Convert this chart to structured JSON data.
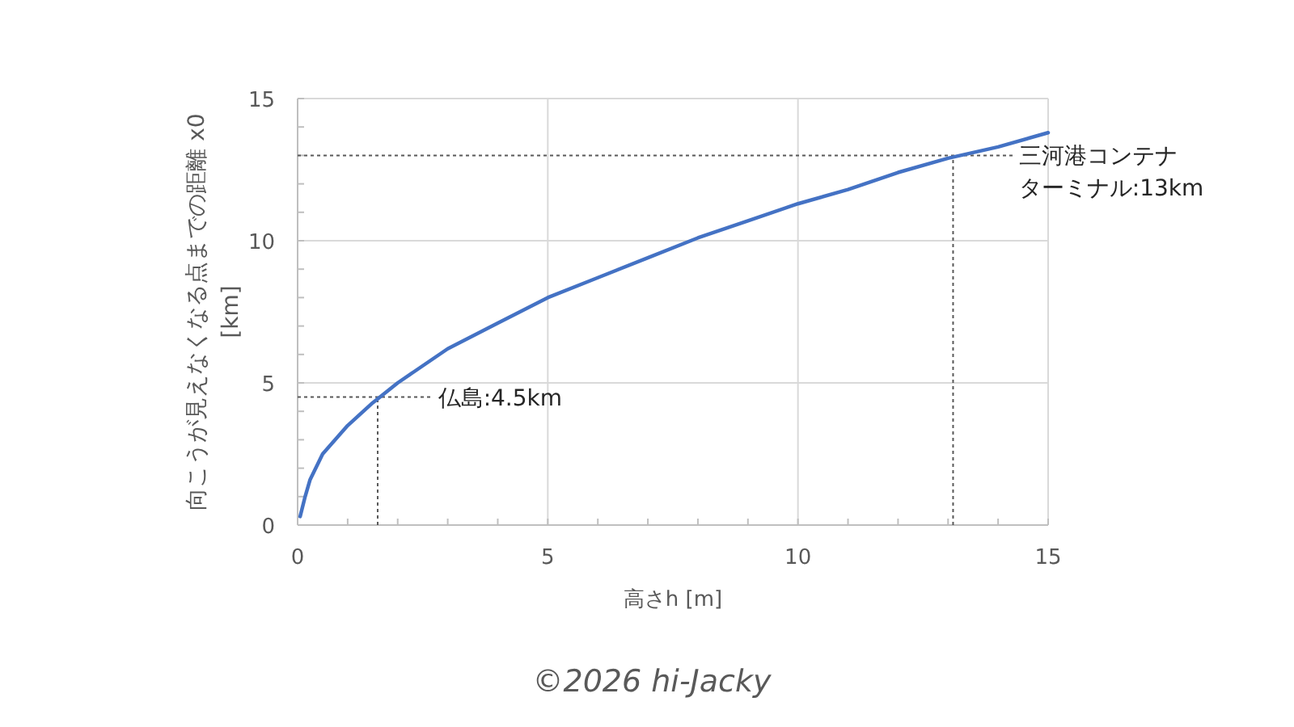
{
  "chart_data": {
    "type": "line",
    "xlabel": "高さh [m]",
    "ylabel": "向こうが見えなくなる点までの距離 x0 [km]",
    "x": [
      0.05,
      0.15,
      0.25,
      0.5,
      1,
      1.5,
      2,
      3,
      4,
      5,
      6,
      7,
      8,
      9,
      10,
      11,
      12,
      13,
      14,
      15
    ],
    "series": [
      {
        "color": "#4472c4",
        "values": [
          0.3,
          1.0,
          1.6,
          2.5,
          3.5,
          4.3,
          5.0,
          6.2,
          7.1,
          8.0,
          8.7,
          9.4,
          10.1,
          10.7,
          11.3,
          11.8,
          12.4,
          12.9,
          13.3,
          13.8
        ]
      }
    ],
    "xlim": [
      0,
      15
    ],
    "ylim": [
      0,
      15
    ],
    "xticks": [
      0,
      {
        "value": 1,
        "label": null
      },
      {
        "value": 2,
        "label": null
      },
      {
        "value": 3,
        "label": null
      },
      {
        "value": 4,
        "label": null
      },
      5,
      {
        "value": 6,
        "label": null
      },
      {
        "value": 7,
        "label": null
      },
      {
        "value": 8,
        "label": null
      },
      {
        "value": 9,
        "label": null
      },
      10,
      {
        "value": 11,
        "label": null
      },
      {
        "value": 12,
        "label": null
      },
      {
        "value": 13,
        "label": null
      },
      {
        "value": 14,
        "label": null
      },
      15
    ],
    "yticks": [
      0,
      {
        "value": 1,
        "label": null
      },
      {
        "value": 2,
        "label": null
      },
      {
        "value": 3,
        "label": null
      },
      {
        "value": 4,
        "label": null
      },
      5,
      {
        "value": 6,
        "label": null
      },
      {
        "value": 7,
        "label": null
      },
      {
        "value": 8,
        "label": null
      },
      {
        "value": 9,
        "label": null
      },
      10,
      {
        "value": 11,
        "label": null
      },
      {
        "value": 12,
        "label": null
      },
      {
        "value": 13,
        "label": null
      },
      {
        "value": 14,
        "label": null
      },
      15
    ],
    "grid": true,
    "marker": "none",
    "line_style": "solid",
    "ref_lines": [
      {
        "axis": "y",
        "value": 4.5,
        "label": "仏島:4.5km",
        "color": "#595959",
        "line_style": "dotted"
      },
      {
        "axis": "x",
        "value": 1.6,
        "color": "#595959",
        "line_style": "dotted"
      },
      {
        "axis": "y",
        "value": 13,
        "label": "三河港コンテナターミナル:13km",
        "color": "#595959",
        "line_style": "dotted"
      },
      {
        "axis": "x",
        "value": 13.1,
        "color": "#595959",
        "line_style": "dotted"
      }
    ],
    "annotations": [
      "©2026 hi-Jacky"
    ]
  }
}
